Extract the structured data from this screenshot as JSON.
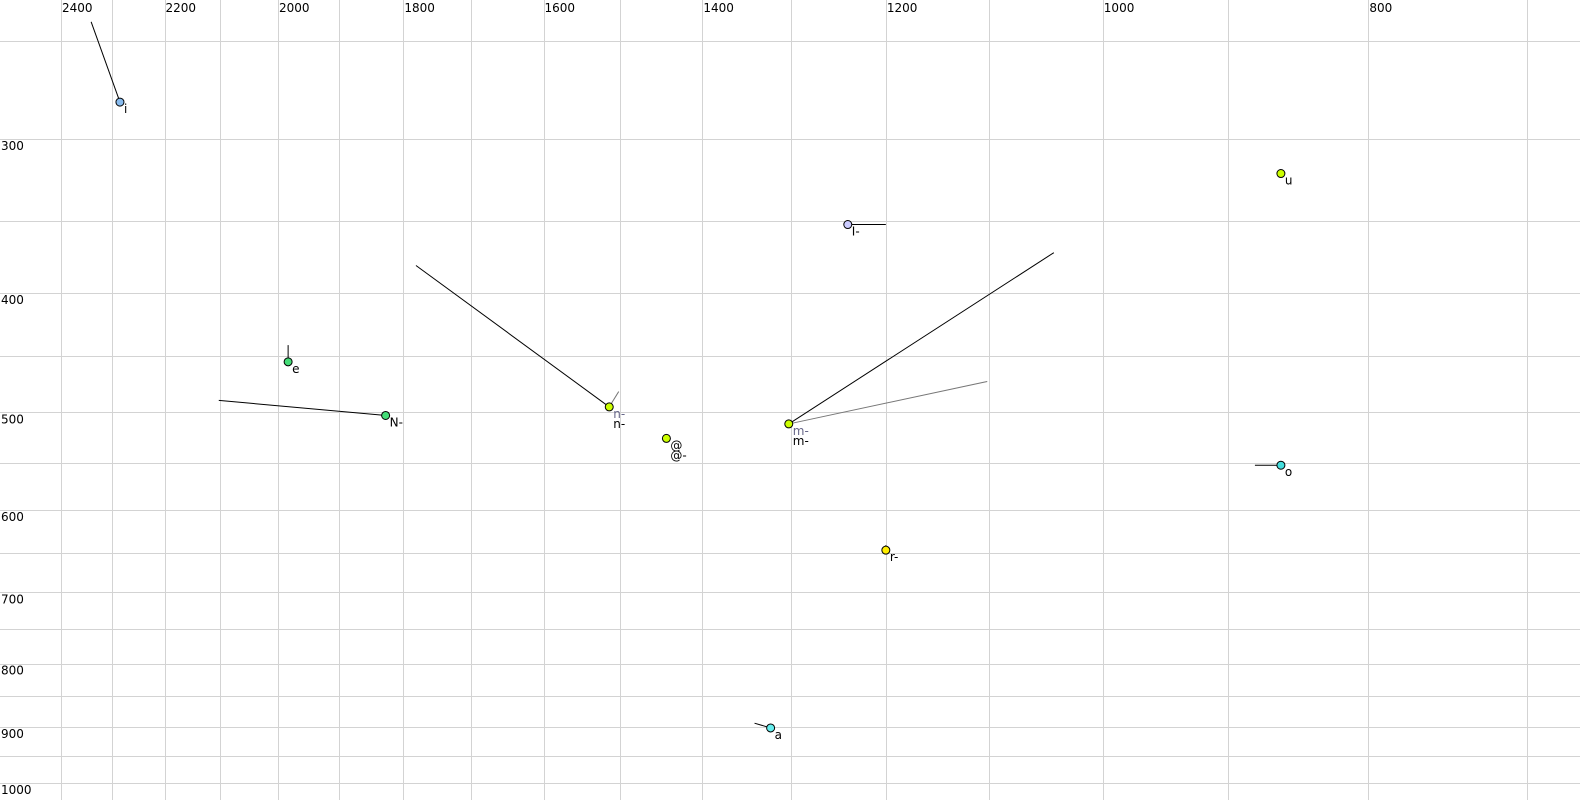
{
  "chart_data": {
    "type": "scatter",
    "title": "",
    "xlabel": "",
    "ylabel": "",
    "x_scale": "log",
    "y_scale": "log",
    "x_reversed": true,
    "xlim": [
      2400,
      700
    ],
    "ylim": [
      250,
      1000
    ],
    "grid": true,
    "x_grid_step": 100,
    "y_grid_step": 50,
    "x_tick_labels": [
      "2400",
      "2200",
      "2000",
      "1800",
      "1600",
      "1400",
      "1200",
      "1000",
      "800"
    ],
    "y_tick_labels": [
      "300",
      "400",
      "500",
      "600",
      "700",
      "800",
      "900",
      "1000"
    ],
    "points": [
      {
        "labels": [
          "i"
        ],
        "x": 2284,
        "y": 280,
        "color": "#88bbee",
        "trails": [
          {
            "x": 2340,
            "y": 241,
            "color": "#000000"
          }
        ]
      },
      {
        "labels": [
          "e"
        ],
        "x": 1983,
        "y": 455,
        "color": "#44dd77",
        "trails": [
          {
            "x": 1983,
            "y": 441,
            "color": "#000000"
          }
        ]
      },
      {
        "labels": [
          "N-"
        ],
        "x": 1827,
        "y": 503,
        "color": "#44dd77",
        "trails": [
          {
            "x": 2102,
            "y": 489,
            "color": "#000000"
          }
        ]
      },
      {
        "labels": [
          "n-",
          "n-"
        ],
        "x": 1514,
        "y": 495,
        "color": "#ccff00",
        "trails": [
          {
            "x": 1781,
            "y": 380,
            "color": "#000000"
          },
          {
            "x": 1502,
            "y": 481,
            "color": "#777777"
          }
        ]
      },
      {
        "labels": [
          "@",
          "@-"
        ],
        "x": 1443,
        "y": 525,
        "color": "#ccff00",
        "trails": []
      },
      {
        "labels": [
          "m-",
          "m-"
        ],
        "x": 1302,
        "y": 511,
        "color": "#ccff00",
        "trails": [
          {
            "x": 1042,
            "y": 371,
            "color": "#000000"
          },
          {
            "x": 1102,
            "y": 472,
            "color": "#777777"
          }
        ]
      },
      {
        "labels": [
          "I-"
        ],
        "x": 1239,
        "y": 352,
        "color": "#ccccff",
        "trails": [
          {
            "x": 1200,
            "y": 352,
            "color": "#000000"
          }
        ]
      },
      {
        "labels": [
          "u"
        ],
        "x": 861,
        "y": 320,
        "color": "#ccff00",
        "trails": []
      },
      {
        "labels": [
          "o"
        ],
        "x": 861,
        "y": 552,
        "color": "#44dddd",
        "trails": [
          {
            "x": 880,
            "y": 552,
            "color": "#000000"
          }
        ]
      },
      {
        "labels": [
          "r-"
        ],
        "x": 1200,
        "y": 647,
        "color": "#ffee00",
        "trails": [
          {
            "x": 1200,
            "y": 641,
            "color": "#000000"
          }
        ]
      },
      {
        "labels": [
          "a"
        ],
        "x": 1322,
        "y": 902,
        "color": "#66eeee",
        "trails": [
          {
            "x": 1340,
            "y": 894,
            "color": "#000000"
          }
        ]
      }
    ]
  }
}
